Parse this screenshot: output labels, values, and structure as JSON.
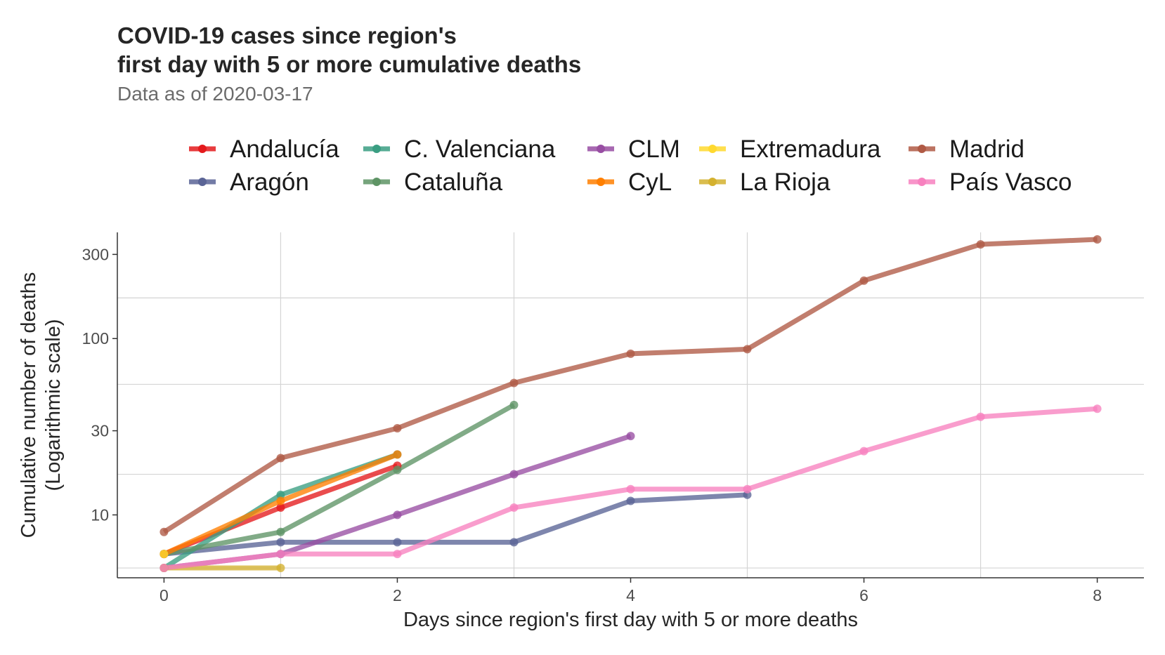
{
  "title_lines": [
    "COVID-19 cases since region's",
    "first day with 5 or more cumulative  deaths"
  ],
  "subtitle": "Data as of 2020-03-17",
  "chart_data": {
    "type": "line",
    "xlabel": "Days since region's first day with 5 or more deaths",
    "ylabel_lines": [
      "Cumulative number of deaths",
      "(Logarithmic scale)"
    ],
    "y_scale": "log",
    "xlim": [
      -0.4,
      8.4
    ],
    "ylim": [
      4.4,
      400
    ],
    "x_ticks": [
      0,
      2,
      4,
      6,
      8
    ],
    "y_ticks": [
      10,
      30,
      100,
      300
    ],
    "y_minor_gridlines": [
      5,
      17,
      55,
      170
    ],
    "grid": true,
    "legend_position": "top",
    "legend_columns": 5,
    "series": [
      {
        "name": "Andalucía",
        "color": "#E41A1C",
        "x": [
          0,
          1,
          2
        ],
        "values": [
          6,
          11,
          19
        ]
      },
      {
        "name": "Aragón",
        "color": "#5A6496",
        "x": [
          0,
          1,
          2,
          3,
          4,
          5
        ],
        "values": [
          6,
          7,
          7,
          7,
          12,
          13
        ]
      },
      {
        "name": "C. Valenciana",
        "color": "#3A9E82",
        "x": [
          0,
          1,
          2
        ],
        "values": [
          5,
          13,
          22
        ]
      },
      {
        "name": "Cataluña",
        "color": "#5E9465",
        "x": [
          0,
          1,
          2,
          3
        ],
        "values": [
          6,
          8,
          18,
          42
        ]
      },
      {
        "name": "CLM",
        "color": "#984EA3",
        "x": [
          0,
          1,
          2,
          3,
          4
        ],
        "values": [
          5,
          6,
          10,
          17,
          28
        ]
      },
      {
        "name": "CyL",
        "color": "#FF7F00",
        "x": [
          0,
          1,
          2
        ],
        "values": [
          6,
          12,
          22
        ]
      },
      {
        "name": "Extremadura",
        "color": "#FFD92F",
        "x": [
          0
        ],
        "values": [
          6
        ]
      },
      {
        "name": "La Rioja",
        "color": "#D4B12F",
        "x": [
          0,
          1
        ],
        "values": [
          5,
          5
        ]
      },
      {
        "name": "Madrid",
        "color": "#B05A45",
        "x": [
          0,
          1,
          2,
          3,
          4,
          5,
          6,
          7,
          8
        ],
        "values": [
          8,
          21,
          31,
          56,
          82,
          87,
          213,
          342,
          365
        ]
      },
      {
        "name": "País Vasco",
        "color": "#F781BF",
        "x": [
          0,
          1,
          2,
          3,
          4,
          5,
          6,
          7,
          8
        ],
        "values": [
          5,
          6,
          6,
          11,
          14,
          14,
          23,
          36,
          40
        ]
      }
    ]
  }
}
